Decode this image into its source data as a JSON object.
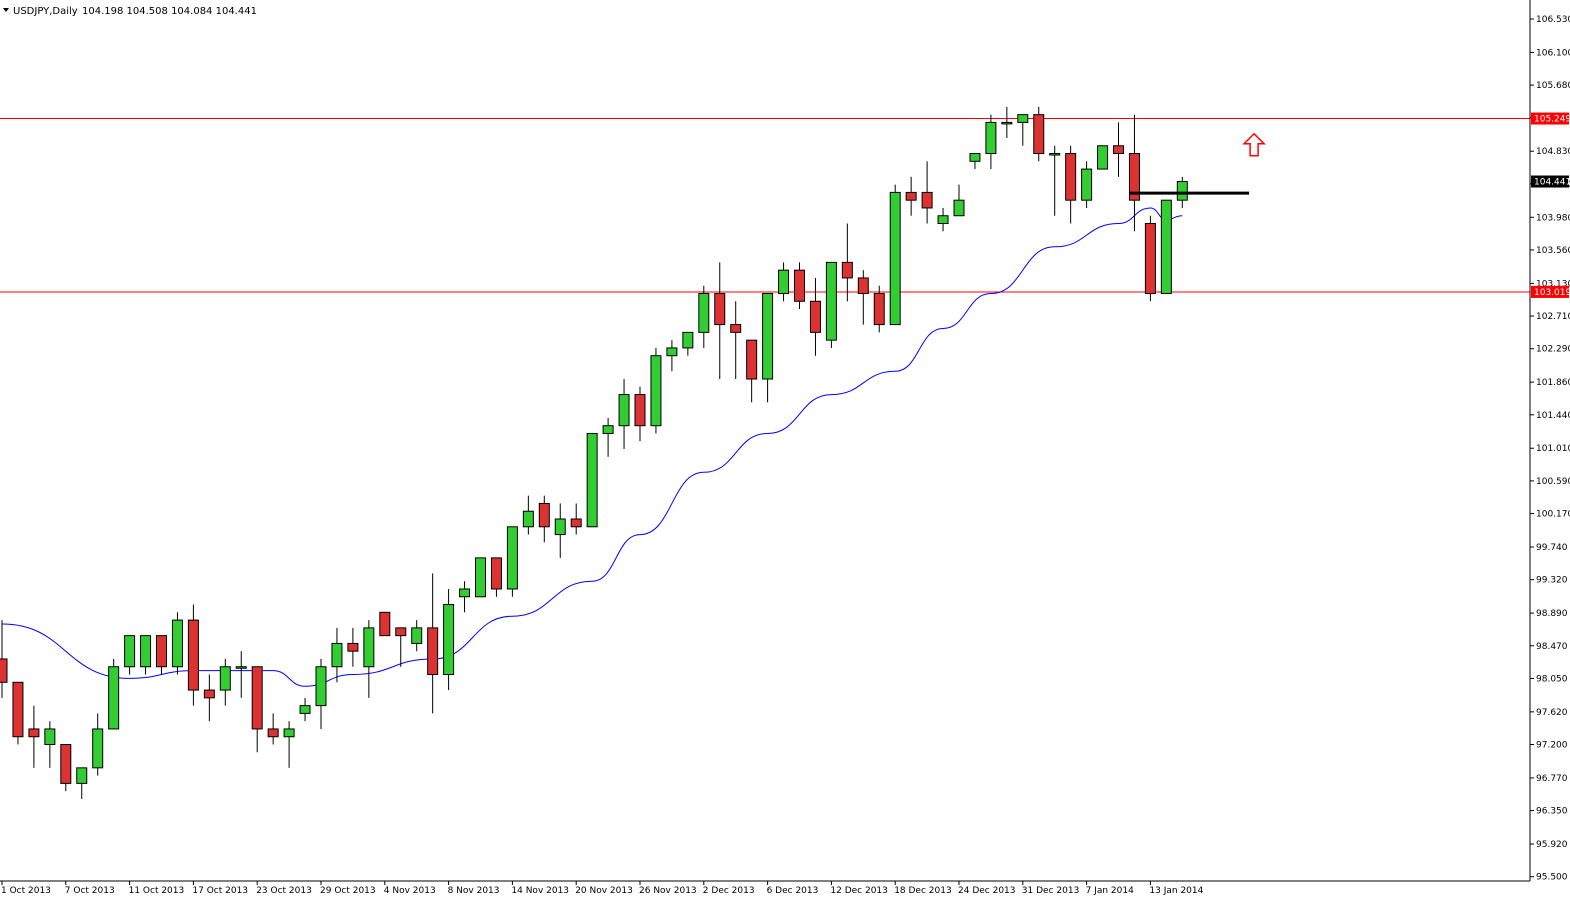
{
  "header": {
    "symbol": "USDJPY,Daily",
    "ohlc": "104.198 104.508 104.084 104.441"
  },
  "colors": {
    "bull": "#32cd32",
    "bear": "#dc3232",
    "outline": "#000000",
    "ma": "#0000ff",
    "level": "#ff0000",
    "current_bg": "#000000",
    "current_text": "#ffffff",
    "arrow": "#ff0000"
  },
  "chart_data": {
    "type": "candlestick",
    "title": "USDJPY,Daily",
    "ylim": [
      95.5,
      106.7
    ],
    "grid": false,
    "y_ticks": [
      "106.530",
      "106.100",
      "105.680",
      "105.260",
      "104.830",
      "104.410",
      "103.980",
      "103.560",
      "103.130",
      "102.710",
      "102.290",
      "101.860",
      "101.440",
      "101.010",
      "100.590",
      "100.170",
      "99.740",
      "99.320",
      "98.890",
      "98.470",
      "98.050",
      "97.620",
      "97.200",
      "96.770",
      "96.350",
      "95.920",
      "95.500"
    ],
    "x_labels": [
      "1 Oct 2013",
      "7 Oct 2013",
      "11 Oct 2013",
      "17 Oct 2013",
      "23 Oct 2013",
      "29 Oct 2013",
      "4 Nov 2013",
      "8 Nov 2013",
      "14 Nov 2013",
      "20 Nov 2013",
      "26 Nov 2013",
      "2 Dec 2013",
      "6 Dec 2013",
      "12 Dec 2013",
      "18 Dec 2013",
      "24 Dec 2013",
      "31 Dec 2013",
      "7 Jan 2014",
      "13 Jan 2014"
    ],
    "candles": [
      [
        98.3,
        98.8,
        97.8,
        98.0
      ],
      [
        98.0,
        98.0,
        97.2,
        97.3
      ],
      [
        97.4,
        97.7,
        96.9,
        97.3
      ],
      [
        97.2,
        97.5,
        96.9,
        97.4
      ],
      [
        97.2,
        97.2,
        96.6,
        96.7
      ],
      [
        96.7,
        96.9,
        96.5,
        96.9
      ],
      [
        96.9,
        97.6,
        96.8,
        97.4
      ],
      [
        97.4,
        98.3,
        97.4,
        98.2
      ],
      [
        98.2,
        98.6,
        98.1,
        98.6
      ],
      [
        98.2,
        98.6,
        98.1,
        98.6
      ],
      [
        98.6,
        98.6,
        98.1,
        98.2
      ],
      [
        98.2,
        98.9,
        98.1,
        98.8
      ],
      [
        98.8,
        99.0,
        97.7,
        97.9
      ],
      [
        97.9,
        98.1,
        97.5,
        97.8
      ],
      [
        97.9,
        98.3,
        97.7,
        98.2
      ],
      [
        98.2,
        98.4,
        97.8,
        98.2
      ],
      [
        98.2,
        98.2,
        97.1,
        97.4
      ],
      [
        97.4,
        97.6,
        97.2,
        97.3
      ],
      [
        97.3,
        97.5,
        96.9,
        97.4
      ],
      [
        97.6,
        97.8,
        97.5,
        97.7
      ],
      [
        97.7,
        98.3,
        97.4,
        98.2
      ],
      [
        98.2,
        98.7,
        98.0,
        98.5
      ],
      [
        98.5,
        98.7,
        98.2,
        98.4
      ],
      [
        98.2,
        98.8,
        97.8,
        98.7
      ],
      [
        98.9,
        98.9,
        98.6,
        98.6
      ],
      [
        98.7,
        98.7,
        98.2,
        98.6
      ],
      [
        98.5,
        98.8,
        98.4,
        98.7
      ],
      [
        98.7,
        99.4,
        97.6,
        98.1
      ],
      [
        98.1,
        99.2,
        97.9,
        99.0
      ],
      [
        99.1,
        99.3,
        98.9,
        99.2
      ],
      [
        99.1,
        99.6,
        99.1,
        99.6
      ],
      [
        99.6,
        99.6,
        99.1,
        99.2
      ],
      [
        99.2,
        100.0,
        99.1,
        100.0
      ],
      [
        100.0,
        100.4,
        99.9,
        100.2
      ],
      [
        100.3,
        100.4,
        99.8,
        100.0
      ],
      [
        99.9,
        100.3,
        99.6,
        100.1
      ],
      [
        100.1,
        100.3,
        99.9,
        100.0
      ],
      [
        100.0,
        101.2,
        100.0,
        101.2
      ],
      [
        101.2,
        101.4,
        100.9,
        101.3
      ],
      [
        101.3,
        101.9,
        101.0,
        101.7
      ],
      [
        101.7,
        101.8,
        101.1,
        101.3
      ],
      [
        101.3,
        102.3,
        101.2,
        102.2
      ],
      [
        102.2,
        102.4,
        102.0,
        102.3
      ],
      [
        102.3,
        102.5,
        102.2,
        102.5
      ],
      [
        102.5,
        103.1,
        102.3,
        103.0
      ],
      [
        103.0,
        103.4,
        101.9,
        102.6
      ],
      [
        102.6,
        102.9,
        101.9,
        102.5
      ],
      [
        102.4,
        102.4,
        101.6,
        101.9
      ],
      [
        101.9,
        103.0,
        101.6,
        103.0
      ],
      [
        103.0,
        103.4,
        102.9,
        103.3
      ],
      [
        103.3,
        103.4,
        102.8,
        102.9
      ],
      [
        102.9,
        103.2,
        102.2,
        102.5
      ],
      [
        102.4,
        103.4,
        102.3,
        103.4
      ],
      [
        103.4,
        103.9,
        102.9,
        103.2
      ],
      [
        103.2,
        103.3,
        102.6,
        103.0
      ],
      [
        103.0,
        103.1,
        102.5,
        102.6
      ],
      [
        102.6,
        104.4,
        102.6,
        104.3
      ],
      [
        104.3,
        104.5,
        104.0,
        104.2
      ],
      [
        104.3,
        104.7,
        103.9,
        104.1
      ],
      [
        103.9,
        104.1,
        103.8,
        104.0
      ],
      [
        104.0,
        104.4,
        104.0,
        104.2
      ],
      [
        104.7,
        104.8,
        104.6,
        104.8
      ],
      [
        104.8,
        105.3,
        104.6,
        105.2
      ],
      [
        105.2,
        105.4,
        105.0,
        105.2
      ],
      [
        105.2,
        105.3,
        104.9,
        105.3
      ],
      [
        105.3,
        105.4,
        104.7,
        104.8
      ],
      [
        104.8,
        104.9,
        104.0,
        104.8
      ],
      [
        104.8,
        104.9,
        103.9,
        104.2
      ],
      [
        104.2,
        104.7,
        104.1,
        104.6
      ],
      [
        104.6,
        104.9,
        104.6,
        104.9
      ],
      [
        104.9,
        105.2,
        104.5,
        104.8
      ],
      [
        104.8,
        105.3,
        103.8,
        104.2
      ],
      [
        103.9,
        104.0,
        102.9,
        103.0
      ],
      [
        103.0,
        104.2,
        103.0,
        104.2
      ],
      [
        104.2,
        104.5,
        104.1,
        104.44
      ]
    ],
    "ma": [
      [
        0,
        98.75
      ],
      [
        8,
        98.05
      ],
      [
        12,
        98.15
      ],
      [
        17,
        98.15
      ],
      [
        19,
        97.95
      ],
      [
        22,
        98.1
      ],
      [
        27,
        98.3
      ],
      [
        32,
        98.85
      ],
      [
        37,
        99.3
      ],
      [
        40,
        99.9
      ],
      [
        44,
        100.7
      ],
      [
        48,
        101.2
      ],
      [
        52,
        101.7
      ],
      [
        56,
        102.0
      ],
      [
        59,
        102.55
      ],
      [
        62,
        103.0
      ],
      [
        66,
        103.6
      ],
      [
        70,
        103.9
      ],
      [
        72,
        104.1
      ],
      [
        73,
        103.95
      ],
      [
        74,
        104.0
      ]
    ],
    "levels": [
      {
        "value": 105.25,
        "label": "105.249"
      },
      {
        "value": 103.02,
        "label": "103.019"
      }
    ],
    "current": {
      "value": 104.44,
      "label": "104.441"
    },
    "support_line": {
      "value": 104.29,
      "from_index": 71,
      "to_index": 78
    },
    "arrow_index": 78,
    "arrow_value": 104.9
  }
}
